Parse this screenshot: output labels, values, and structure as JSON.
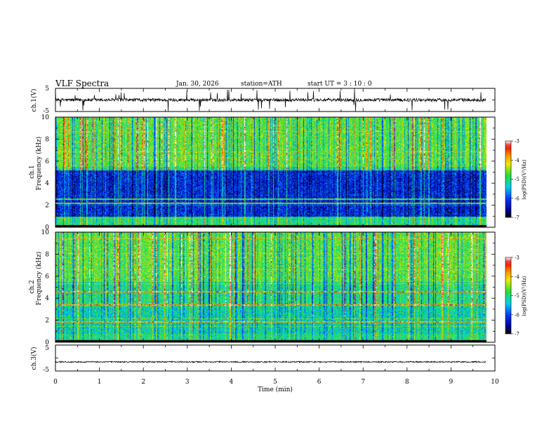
{
  "header": {
    "title": "VLF  Spectra",
    "date": "Jan. 30, 2026",
    "station": "station=ATH",
    "start_time": "start  UT  =   3  : 10 : 0"
  },
  "chart_data": [
    {
      "type": "line",
      "id": "ch1",
      "ylabel": "ch.1(V)",
      "ylim": [
        -5,
        5
      ],
      "yticks": [
        "5",
        "-5"
      ],
      "x_range": [
        0,
        10
      ],
      "data_end": 9.8,
      "baseline": 0.0,
      "color": "#000000"
    },
    {
      "type": "heatmap",
      "id": "ch1-spectrogram",
      "ylabel_ch": "ch.1",
      "ylabel": "Frequency  (kHz)",
      "ylim": [
        0,
        10
      ],
      "yticks": [
        "0",
        "2",
        "4",
        "6",
        "8",
        "10"
      ],
      "x_range": [
        0,
        10
      ],
      "data_end": 9.8,
      "colorbar_label": "log(PSD)(V²/Hz)",
      "colorbar_range": [
        -7,
        -3
      ],
      "colorbar_ticks": [
        "-3",
        "-4",
        "-5",
        "-6",
        "-7"
      ],
      "quiet_band_khz": [
        1.0,
        5.2
      ],
      "quiet_band_level": -6.2,
      "strong_lines_khz": [
        2.2,
        2.6
      ],
      "background_level": -5.0
    },
    {
      "type": "heatmap",
      "id": "ch2-spectrogram",
      "ylabel_ch": "ch.2",
      "ylabel": "Frequency  (kHz)",
      "ylim": [
        0,
        10
      ],
      "yticks": [
        "0",
        "2",
        "4",
        "6",
        "8",
        "10"
      ],
      "x_range": [
        0,
        10
      ],
      "data_end": 9.8,
      "colorbar_label": "log(PSD)(V²/Hz)",
      "colorbar_range": [
        -7,
        -3
      ],
      "colorbar_ticks": [
        "-3",
        "-4",
        "-5",
        "-6",
        "-7"
      ],
      "quiet_band_khz": [
        0.8,
        3.2
      ],
      "quiet_band_level": -5.2,
      "strong_lines_khz": [
        1.9,
        3.4,
        4.6
      ],
      "background_level": -5.0
    },
    {
      "type": "line",
      "id": "ch3",
      "ylabel": "ch.3(V)",
      "ylim": [
        -5,
        5
      ],
      "yticks": [
        "5",
        "-5"
      ],
      "x_range": [
        0,
        10
      ],
      "data_end": 9.8,
      "baseline": -1.5,
      "color": "#000000"
    }
  ],
  "x_axis": {
    "label": "Time  (min)",
    "ticks": [
      "0",
      "1",
      "2",
      "3",
      "4",
      "5",
      "6",
      "7",
      "8",
      "9",
      "10"
    ]
  }
}
